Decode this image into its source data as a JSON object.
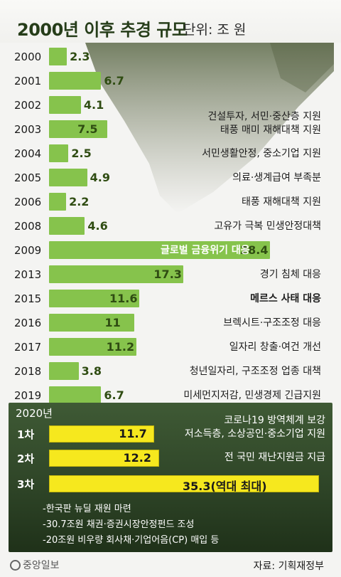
{
  "header": {
    "title": "2000년 이후 추경 규모",
    "unit": "단위: 조 원"
  },
  "chart_data": {
    "type": "bar",
    "orientation": "horizontal",
    "title": "2000년 이후 추경 규모",
    "unit": "조 원",
    "categories": [
      "2000",
      "2001",
      "2002",
      "2003",
      "2004",
      "2005",
      "2006",
      "2008",
      "2009",
      "2013",
      "2015",
      "2016",
      "2017",
      "2018",
      "2019"
    ],
    "values": [
      2.3,
      6.7,
      4.1,
      7.5,
      2.5,
      4.9,
      2.2,
      4.6,
      28.4,
      17.3,
      11.6,
      11,
      11.2,
      3.8,
      6.7
    ],
    "value_labels": [
      "2.3",
      "6.7",
      "4.1",
      "7.5",
      "2.5",
      "4.9",
      "2.2",
      "4.6",
      "28.4",
      "17.3",
      "11.6",
      "11",
      "11.2",
      "3.8",
      "6.7"
    ],
    "descriptions": [
      [],
      [],
      [],
      [
        "건설투자, 서민·중산층 지원",
        "태풍 매미 재해대책 지원"
      ],
      [
        "서민생활안정, 중소기업 지원"
      ],
      [
        "의료·생계급여 부족분"
      ],
      [
        "태풍 재해대책 지원"
      ],
      [
        "고유가 극복 민생안정대책"
      ],
      [
        "글로벌 금융위기 대응"
      ],
      [
        "경기 침체 대응"
      ],
      [
        "메르스 사태 대응"
      ],
      [
        "브렉시트·구조조정 대응"
      ],
      [
        "일자리 창출·여건 개선"
      ],
      [
        "청년일자리, 구조조정 업종 대책"
      ],
      [
        "미세먼지저감, 민생경제 긴급지원"
      ]
    ],
    "bold_descriptions": [
      8,
      10
    ],
    "colors": {
      "bar": "#86c34c",
      "panel_bar": "#f6e81e",
      "panel_bg": "#2d4326"
    },
    "panel_2020": {
      "title": "2020년",
      "categories": [
        "1차",
        "2차",
        "3차"
      ],
      "values": [
        11.7,
        12.2,
        35.3
      ],
      "value_labels": [
        "11.7",
        "12.2",
        "35.3(역대 최대)"
      ],
      "descriptions": [
        [
          "코로나19 방역체계 보강",
          "저소득층, 소상공인·중소기업 지원"
        ],
        [
          "전 국민 재난지원금 지급"
        ],
        []
      ],
      "notes": [
        "-한국판 뉴딜 재원 마련",
        "-30.7조원 채권·증권시장안정펀드 조성",
        "-20조원 비우량 회사채·기업어음(CP) 매입 등"
      ]
    }
  },
  "footer": {
    "logo": "중앙일보",
    "source": "자료: 기획재정부"
  }
}
